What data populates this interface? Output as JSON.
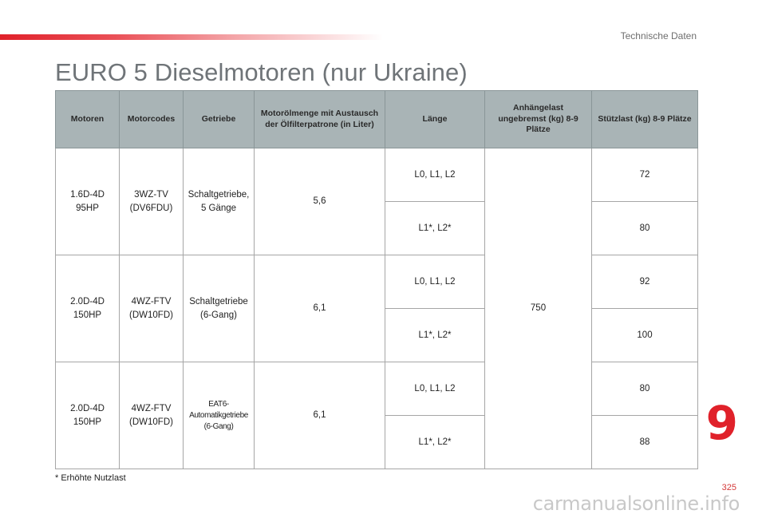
{
  "header": {
    "section_title": "Technische Daten",
    "page_title": "EURO 5 Dieselmotoren (nur Ukraine)"
  },
  "table": {
    "columns": [
      "Motoren",
      "Motorcodes",
      "Getriebe",
      "Motorölmenge mit Austausch der Ölfilterpatrone (in Liter)",
      "Länge",
      "Anhängelast ungebremst (kg) 8-9 Plätze",
      "Stützlast (kg) 8-9 Plätze"
    ],
    "towing_unbraked": "750",
    "groups": [
      {
        "motor": "1.6D-4D 95HP",
        "code": "3WZ-TV (DV6FDU)",
        "gearbox": "Schaltgetriebe, 5 Gänge",
        "oil": "5,6",
        "rows": [
          {
            "length": "L0, L1, L2",
            "support_load": "72"
          },
          {
            "length": "L1*, L2*",
            "support_load": "80"
          }
        ]
      },
      {
        "motor": "2.0D-4D 150HP",
        "code": "4WZ-FTV (DW10FD)",
        "gearbox": "Schaltgetriebe (6-Gang)",
        "oil": "6,1",
        "rows": [
          {
            "length": "L0, L1, L2",
            "support_load": "92"
          },
          {
            "length": "L1*, L2*",
            "support_load": "100"
          }
        ]
      },
      {
        "motor": "2.0D-4D 150HP",
        "code": "4WZ-FTV (DW10FD)",
        "gearbox": "EAT6-Automatikgetriebe (6-Gang)",
        "oil": "6,1",
        "rows": [
          {
            "length": "L0, L1, L2",
            "support_load": "80"
          },
          {
            "length": "L1*, L2*",
            "support_load": "88"
          }
        ]
      }
    ]
  },
  "footnote": "* Erhöhte Nutzlast",
  "chapter_number": "9",
  "page_number": "325",
  "watermark": "carmanualsonline.info",
  "colors": {
    "accent_red": "#e0212a",
    "header_fill": "#a9b4b6",
    "title_gray": "#6f7478"
  }
}
